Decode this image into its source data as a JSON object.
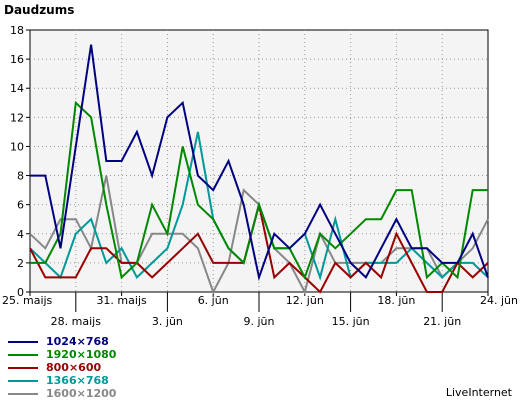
{
  "brand": "LiveInternet",
  "chart_data": {
    "type": "line",
    "ylabel": "Daudzums",
    "ylim": [
      0,
      18
    ],
    "yticks": [
      0,
      2,
      4,
      6,
      8,
      10,
      12,
      14,
      16,
      18
    ],
    "grid": true,
    "legend_position": "bottom-left",
    "categories": [
      "25. maijs",
      "26. maijs",
      "27. maijs",
      "28. maijs",
      "29. maijs",
      "30. maijs",
      "31. maijs",
      "1. jūn",
      "2. jūn",
      "3. jūn",
      "4. jūn",
      "5. jūn",
      "6. jūn",
      "7. jūn",
      "8. jūn",
      "9. jūn",
      "10. jūn",
      "11. jūn",
      "12. jūn",
      "13. jūn",
      "14. jūn",
      "15. jūn",
      "16. jūn",
      "17. jūn",
      "18. jūn",
      "19. jūn",
      "20. jūn",
      "21. jūn",
      "22. jūn",
      "23. jūn",
      "24. jūn"
    ],
    "x_ticks": [
      {
        "index": 0,
        "label": "25. maijs",
        "row": 1
      },
      {
        "index": 3,
        "label": "28. maijs",
        "row": 2
      },
      {
        "index": 6,
        "label": "31. maijs",
        "row": 1
      },
      {
        "index": 9,
        "label": "3. jūn",
        "row": 2
      },
      {
        "index": 12,
        "label": "6. jūn",
        "row": 1
      },
      {
        "index": 15,
        "label": "9. jūn",
        "row": 2
      },
      {
        "index": 18,
        "label": "12. jūn",
        "row": 1
      },
      {
        "index": 21,
        "label": "15. jūn",
        "row": 2
      },
      {
        "index": 24,
        "label": "18. jūn",
        "row": 1
      },
      {
        "index": 27,
        "label": "21. jūn",
        "row": 2
      },
      {
        "index": 30,
        "label": "24. jūn",
        "row": 1
      }
    ],
    "series": [
      {
        "name": "1600×1200",
        "color": "#888888",
        "values": [
          4,
          3,
          5,
          5,
          3,
          8,
          2,
          2,
          4,
          4,
          4,
          3,
          0,
          2,
          7,
          6,
          3,
          2,
          0,
          4,
          2,
          2,
          2,
          2,
          3,
          3,
          3,
          1,
          2,
          3,
          5
        ]
      },
      {
        "name": "1366×768",
        "color": "#009999",
        "values": [
          3,
          2,
          1,
          4,
          5,
          2,
          3,
          1,
          2,
          3,
          6,
          11,
          5,
          3,
          2,
          6,
          3,
          3,
          4,
          1,
          5,
          1,
          2,
          2,
          2,
          3,
          2,
          1,
          2,
          2,
          1
        ]
      },
      {
        "name": "800×600",
        "color": "#990000",
        "values": [
          3,
          1,
          1,
          1,
          3,
          3,
          2,
          2,
          1,
          2,
          3,
          4,
          2,
          2,
          2,
          6,
          1,
          2,
          1,
          0,
          2,
          1,
          2,
          1,
          4,
          2,
          0,
          0,
          2,
          1,
          2
        ]
      },
      {
        "name": "1920×1080",
        "color": "#008800",
        "values": [
          2,
          2,
          4,
          13,
          12,
          6,
          1,
          2,
          6,
          4,
          10,
          6,
          5,
          3,
          2,
          6,
          3,
          3,
          1,
          4,
          3,
          4,
          5,
          5,
          7,
          7,
          1,
          2,
          1,
          7,
          7
        ]
      },
      {
        "name": "1024×768",
        "color": "#000080",
        "values": [
          8,
          8,
          3,
          10,
          17,
          9,
          9,
          11,
          8,
          12,
          13,
          8,
          7,
          9,
          6,
          1,
          4,
          3,
          4,
          6,
          4,
          2,
          1,
          3,
          5,
          3,
          3,
          2,
          2,
          4,
          1
        ]
      }
    ]
  }
}
